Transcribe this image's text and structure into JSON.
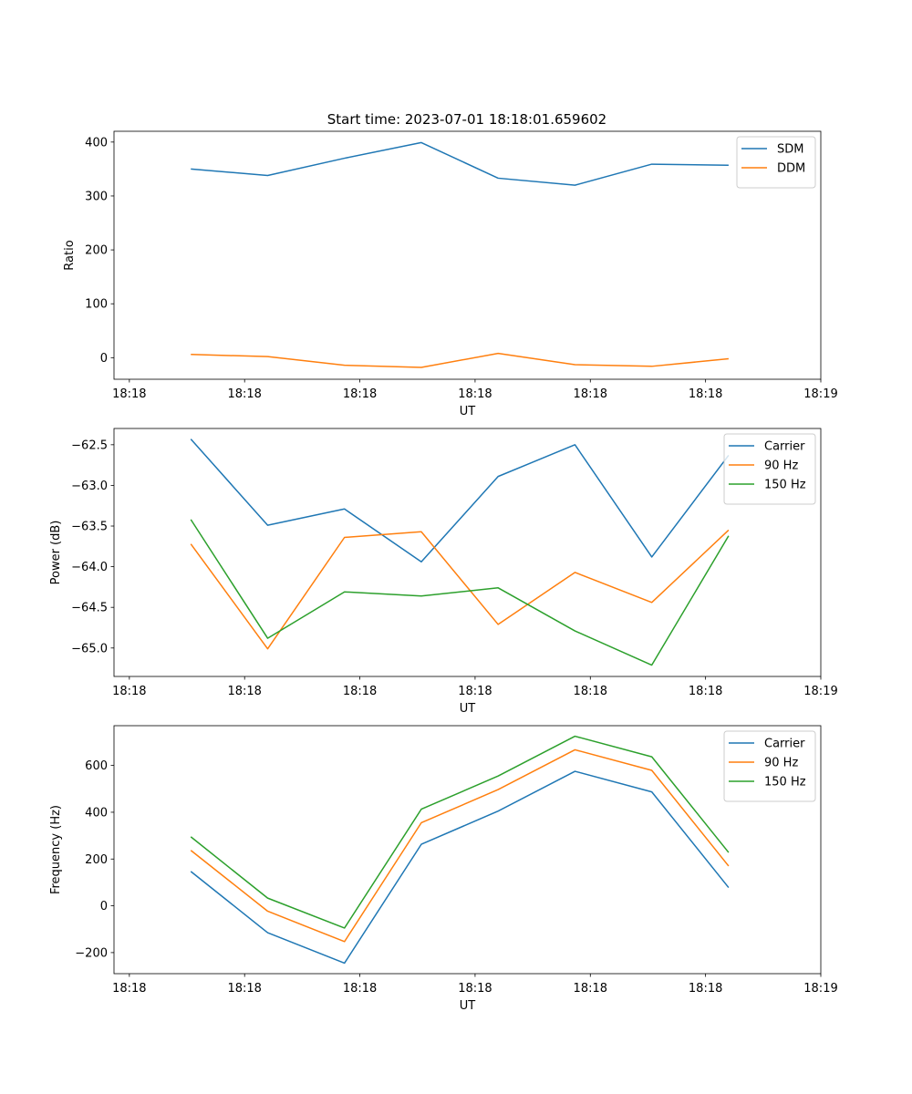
{
  "figure": {
    "title": "Start time: 2023-07-01 18:18:01.659602"
  },
  "chart_data": [
    {
      "type": "line",
      "ylabel": "Ratio",
      "xlabel": "UT",
      "ylim": [
        -40,
        420
      ],
      "yticks": [
        0,
        100,
        200,
        300,
        400
      ],
      "xlim": [
        0,
        9.2
      ],
      "xticks": [
        0.2,
        1.7,
        3.2,
        4.7,
        6.2,
        7.7,
        9.2
      ],
      "xticklabels": [
        "18:18",
        "18:18",
        "18:18",
        "18:18",
        "18:18",
        "18:18",
        "18:19"
      ],
      "x": [
        1,
        2,
        3,
        4,
        5,
        6,
        7,
        8
      ],
      "series": [
        {
          "name": "SDM",
          "color": "#1f77b4",
          "values": [
            350,
            338,
            370,
            399,
            333,
            320,
            359,
            357
          ]
        },
        {
          "name": "DDM",
          "color": "#ff7f0e",
          "values": [
            6,
            2,
            -14,
            -18,
            8,
            -13,
            -16,
            -2
          ]
        }
      ],
      "legend": "top-right"
    },
    {
      "type": "line",
      "ylabel": "Power (dB)",
      "xlabel": "UT",
      "ylim": [
        -65.35,
        -62.3
      ],
      "yticks": [
        -65.0,
        -64.5,
        -64.0,
        -63.5,
        -63.0,
        -62.5
      ],
      "yticklabels": [
        "−65.0",
        "−64.5",
        "−64.0",
        "−63.5",
        "−63.0",
        "−62.5"
      ],
      "xlim": [
        0,
        9.2
      ],
      "xticks": [
        0.2,
        1.7,
        3.2,
        4.7,
        6.2,
        7.7,
        9.2
      ],
      "xticklabels": [
        "18:18",
        "18:18",
        "18:18",
        "18:18",
        "18:18",
        "18:18",
        "18:19"
      ],
      "x": [
        1,
        2,
        3,
        4,
        5,
        6,
        7,
        8
      ],
      "series": [
        {
          "name": "Carrier",
          "color": "#1f77b4",
          "values": [
            -62.43,
            -63.49,
            -63.29,
            -63.94,
            -62.89,
            -62.5,
            -63.88,
            -62.63
          ]
        },
        {
          "name": "90 Hz",
          "color": "#ff7f0e",
          "values": [
            -63.72,
            -65.01,
            -63.64,
            -63.57,
            -64.71,
            -64.07,
            -64.44,
            -63.55
          ]
        },
        {
          "name": "150 Hz",
          "color": "#2ca02c",
          "values": [
            -63.42,
            -64.88,
            -64.31,
            -64.36,
            -64.26,
            -64.79,
            -65.21,
            -63.62
          ]
        }
      ],
      "legend": "top-right"
    },
    {
      "type": "line",
      "ylabel": "Frequency (Hz)",
      "xlabel": "UT",
      "ylim": [
        -290,
        770
      ],
      "yticks": [
        -200,
        0,
        200,
        400,
        600
      ],
      "yticklabels": [
        "−200",
        "0",
        "200",
        "400",
        "600"
      ],
      "xlim": [
        0,
        9.2
      ],
      "xticks": [
        0.2,
        1.7,
        3.2,
        4.7,
        6.2,
        7.7,
        9.2
      ],
      "xticklabels": [
        "18:18",
        "18:18",
        "18:18",
        "18:18",
        "18:18",
        "18:18",
        "18:19"
      ],
      "x": [
        1,
        2,
        3,
        4,
        5,
        6,
        7,
        8
      ],
      "series": [
        {
          "name": "Carrier",
          "color": "#1f77b4",
          "values": [
            147,
            -115,
            -245,
            263,
            405,
            575,
            487,
            78
          ]
        },
        {
          "name": "90 Hz",
          "color": "#ff7f0e",
          "values": [
            237,
            -23,
            -153,
            355,
            497,
            667,
            579,
            170
          ]
        },
        {
          "name": "150 Hz",
          "color": "#2ca02c",
          "values": [
            295,
            33,
            -95,
            413,
            555,
            725,
            637,
            228
          ]
        }
      ],
      "legend": "top-right"
    }
  ]
}
